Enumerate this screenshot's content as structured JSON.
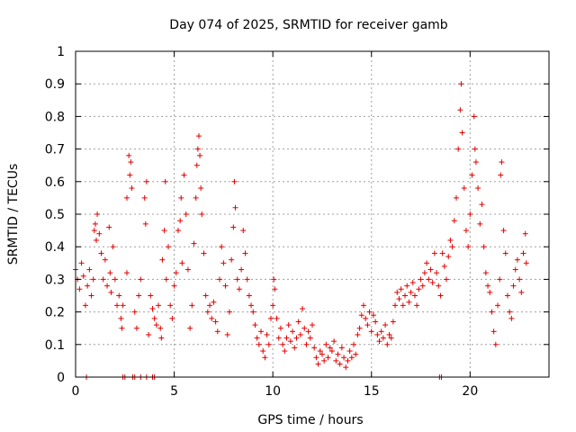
{
  "chart_data": {
    "type": "scatter",
    "title": "Day 074 of 2025, SRMTID for receiver gamb",
    "xlabel": "GPS time / hours",
    "ylabel": "SRMTID / TECUs",
    "xlim": [
      0,
      24
    ],
    "ylim": [
      0,
      1
    ],
    "xticks": [
      0,
      5,
      10,
      15,
      20
    ],
    "xtick_labels": [
      "0",
      "5",
      "10",
      "15",
      "20"
    ],
    "yticks": [
      0,
      0.1,
      0.2,
      0.3,
      0.4,
      0.5,
      0.6,
      0.7,
      0.8,
      0.9,
      1
    ],
    "ytick_labels": [
      "0",
      "0.1",
      "0.2",
      "0.3",
      "0.4",
      "0.5",
      "0.6",
      "0.7",
      "0.8",
      "0.9",
      "1"
    ],
    "grid": true,
    "marker": "plus",
    "color": "#e00000",
    "series": [
      {
        "name": "SRMTID",
        "points": [
          [
            0.0,
            0.33
          ],
          [
            0.1,
            0.3
          ],
          [
            0.2,
            0.27
          ],
          [
            0.3,
            0.35
          ],
          [
            0.4,
            0.31
          ],
          [
            0.5,
            0.22
          ],
          [
            0.6,
            0.28
          ],
          [
            0.7,
            0.33
          ],
          [
            0.8,
            0.25
          ],
          [
            0.9,
            0.3
          ],
          [
            0.95,
            0.45
          ],
          [
            1.0,
            0.47
          ],
          [
            1.05,
            0.42
          ],
          [
            1.1,
            0.5
          ],
          [
            1.2,
            0.44
          ],
          [
            1.3,
            0.38
          ],
          [
            1.4,
            0.3
          ],
          [
            1.5,
            0.36
          ],
          [
            1.6,
            0.28
          ],
          [
            1.7,
            0.46
          ],
          [
            1.75,
            0.32
          ],
          [
            1.8,
            0.26
          ],
          [
            1.9,
            0.4
          ],
          [
            2.0,
            0.3
          ],
          [
            2.1,
            0.22
          ],
          [
            2.2,
            0.25
          ],
          [
            2.3,
            0.18
          ],
          [
            2.35,
            0.15
          ],
          [
            2.4,
            0.22
          ],
          [
            2.6,
            0.32
          ],
          [
            2.6,
            0.55
          ],
          [
            2.7,
            0.68
          ],
          [
            2.75,
            0.62
          ],
          [
            2.8,
            0.66
          ],
          [
            2.85,
            0.58
          ],
          [
            3.0,
            0.2
          ],
          [
            3.1,
            0.15
          ],
          [
            3.2,
            0.25
          ],
          [
            3.3,
            0.3
          ],
          [
            3.5,
            0.55
          ],
          [
            3.6,
            0.6
          ],
          [
            3.55,
            0.47
          ],
          [
            3.7,
            0.13
          ],
          [
            3.8,
            0.25
          ],
          [
            3.9,
            0.21
          ],
          [
            4.0,
            0.18
          ],
          [
            4.1,
            0.16
          ],
          [
            4.2,
            0.22
          ],
          [
            4.3,
            0.15
          ],
          [
            4.35,
            0.12
          ],
          [
            4.4,
            0.36
          ],
          [
            4.5,
            0.45
          ],
          [
            4.55,
            0.6
          ],
          [
            4.6,
            0.3
          ],
          [
            4.7,
            0.4
          ],
          [
            4.8,
            0.22
          ],
          [
            4.9,
            0.18
          ],
          [
            5.0,
            0.28
          ],
          [
            5.1,
            0.32
          ],
          [
            5.2,
            0.45
          ],
          [
            5.3,
            0.48
          ],
          [
            5.35,
            0.55
          ],
          [
            5.4,
            0.35
          ],
          [
            5.5,
            0.62
          ],
          [
            5.6,
            0.5
          ],
          [
            5.7,
            0.33
          ],
          [
            5.8,
            0.15
          ],
          [
            5.9,
            0.22
          ],
          [
            6.0,
            0.41
          ],
          [
            6.1,
            0.55
          ],
          [
            6.15,
            0.65
          ],
          [
            6.2,
            0.7
          ],
          [
            6.25,
            0.74
          ],
          [
            6.3,
            0.68
          ],
          [
            6.35,
            0.58
          ],
          [
            6.4,
            0.5
          ],
          [
            6.5,
            0.38
          ],
          [
            6.6,
            0.25
          ],
          [
            6.7,
            0.2
          ],
          [
            6.8,
            0.22
          ],
          [
            6.9,
            0.18
          ],
          [
            7.0,
            0.23
          ],
          [
            7.1,
            0.17
          ],
          [
            7.2,
            0.14
          ],
          [
            7.3,
            0.3
          ],
          [
            7.4,
            0.4
          ],
          [
            7.5,
            0.35
          ],
          [
            7.6,
            0.28
          ],
          [
            7.7,
            0.13
          ],
          [
            7.8,
            0.2
          ],
          [
            7.9,
            0.36
          ],
          [
            8.0,
            0.46
          ],
          [
            8.05,
            0.6
          ],
          [
            8.1,
            0.52
          ],
          [
            8.2,
            0.3
          ],
          [
            8.3,
            0.27
          ],
          [
            8.4,
            0.33
          ],
          [
            8.5,
            0.45
          ],
          [
            8.6,
            0.38
          ],
          [
            8.7,
            0.3
          ],
          [
            8.8,
            0.25
          ],
          [
            8.9,
            0.22
          ],
          [
            9.0,
            0.2
          ],
          [
            9.1,
            0.16
          ],
          [
            9.2,
            0.12
          ],
          [
            9.3,
            0.1
          ],
          [
            9.4,
            0.14
          ],
          [
            9.5,
            0.08
          ],
          [
            9.6,
            0.06
          ],
          [
            9.7,
            0.13
          ],
          [
            9.8,
            0.1
          ],
          [
            9.9,
            0.18
          ],
          [
            10.0,
            0.22
          ],
          [
            10.05,
            0.3
          ],
          [
            10.1,
            0.27
          ],
          [
            10.2,
            0.18
          ],
          [
            10.3,
            0.12
          ],
          [
            10.4,
            0.15
          ],
          [
            10.5,
            0.1
          ],
          [
            10.6,
            0.08
          ],
          [
            10.7,
            0.12
          ],
          [
            10.8,
            0.16
          ],
          [
            10.9,
            0.11
          ],
          [
            11.0,
            0.14
          ],
          [
            11.1,
            0.09
          ],
          [
            11.2,
            0.12
          ],
          [
            11.3,
            0.17
          ],
          [
            11.4,
            0.13
          ],
          [
            11.5,
            0.21
          ],
          [
            11.6,
            0.15
          ],
          [
            11.7,
            0.1
          ],
          [
            11.8,
            0.14
          ],
          [
            11.9,
            0.12
          ],
          [
            12.0,
            0.16
          ],
          [
            12.1,
            0.09
          ],
          [
            12.2,
            0.06
          ],
          [
            12.3,
            0.04
          ],
          [
            12.4,
            0.08
          ],
          [
            12.5,
            0.07
          ],
          [
            12.6,
            0.05
          ],
          [
            12.7,
            0.1
          ],
          [
            12.8,
            0.06
          ],
          [
            12.9,
            0.09
          ],
          [
            13.0,
            0.08
          ],
          [
            13.1,
            0.11
          ],
          [
            13.2,
            0.05
          ],
          [
            13.3,
            0.07
          ],
          [
            13.4,
            0.04
          ],
          [
            13.5,
            0.09
          ],
          [
            13.6,
            0.06
          ],
          [
            13.7,
            0.03
          ],
          [
            13.8,
            0.05
          ],
          [
            13.9,
            0.08
          ],
          [
            14.0,
            0.06
          ],
          [
            14.1,
            0.1
          ],
          [
            14.2,
            0.07
          ],
          [
            14.3,
            0.13
          ],
          [
            14.4,
            0.15
          ],
          [
            14.5,
            0.19
          ],
          [
            14.6,
            0.22
          ],
          [
            14.7,
            0.18
          ],
          [
            14.8,
            0.16
          ],
          [
            14.9,
            0.2
          ],
          [
            15.0,
            0.14
          ],
          [
            15.1,
            0.19
          ],
          [
            15.2,
            0.17
          ],
          [
            15.3,
            0.13
          ],
          [
            15.4,
            0.11
          ],
          [
            15.5,
            0.14
          ],
          [
            15.6,
            0.12
          ],
          [
            15.7,
            0.16
          ],
          [
            15.8,
            0.1
          ],
          [
            15.9,
            0.13
          ],
          [
            16.0,
            0.12
          ],
          [
            16.1,
            0.17
          ],
          [
            16.2,
            0.22
          ],
          [
            16.3,
            0.26
          ],
          [
            16.4,
            0.24
          ],
          [
            16.5,
            0.27
          ],
          [
            16.6,
            0.22
          ],
          [
            16.7,
            0.25
          ],
          [
            16.8,
            0.28
          ],
          [
            16.9,
            0.23
          ],
          [
            17.0,
            0.26
          ],
          [
            17.1,
            0.29
          ],
          [
            17.2,
            0.25
          ],
          [
            17.3,
            0.22
          ],
          [
            17.4,
            0.27
          ],
          [
            17.5,
            0.3
          ],
          [
            17.6,
            0.28
          ],
          [
            17.7,
            0.32
          ],
          [
            17.8,
            0.35
          ],
          [
            17.9,
            0.3
          ],
          [
            18.0,
            0.33
          ],
          [
            18.1,
            0.29
          ],
          [
            18.2,
            0.38
          ],
          [
            18.3,
            0.32
          ],
          [
            18.4,
            0.28
          ],
          [
            18.5,
            0.25
          ],
          [
            18.6,
            0.38
          ],
          [
            18.7,
            0.34
          ],
          [
            18.8,
            0.3
          ],
          [
            18.9,
            0.37
          ],
          [
            19.0,
            0.42
          ],
          [
            19.1,
            0.4
          ],
          [
            19.2,
            0.48
          ],
          [
            19.3,
            0.55
          ],
          [
            19.4,
            0.7
          ],
          [
            19.5,
            0.82
          ],
          [
            19.55,
            0.9
          ],
          [
            19.6,
            0.75
          ],
          [
            19.7,
            0.58
          ],
          [
            19.8,
            0.45
          ],
          [
            19.9,
            0.4
          ],
          [
            20.0,
            0.5
          ],
          [
            20.1,
            0.62
          ],
          [
            20.2,
            0.8
          ],
          [
            20.25,
            0.7
          ],
          [
            20.3,
            0.66
          ],
          [
            20.4,
            0.58
          ],
          [
            20.5,
            0.47
          ],
          [
            20.6,
            0.53
          ],
          [
            20.7,
            0.4
          ],
          [
            20.8,
            0.32
          ],
          [
            20.9,
            0.28
          ],
          [
            21.0,
            0.26
          ],
          [
            21.1,
            0.2
          ],
          [
            21.2,
            0.14
          ],
          [
            21.3,
            0.1
          ],
          [
            21.4,
            0.22
          ],
          [
            21.5,
            0.3
          ],
          [
            21.55,
            0.62
          ],
          [
            21.6,
            0.66
          ],
          [
            21.7,
            0.45
          ],
          [
            21.8,
            0.38
          ],
          [
            21.9,
            0.25
          ],
          [
            22.0,
            0.2
          ],
          [
            22.1,
            0.18
          ],
          [
            22.2,
            0.28
          ],
          [
            22.3,
            0.33
          ],
          [
            22.4,
            0.36
          ],
          [
            22.5,
            0.3
          ],
          [
            22.6,
            0.26
          ],
          [
            22.7,
            0.38
          ],
          [
            22.8,
            0.44
          ],
          [
            22.85,
            0.35
          ]
        ]
      }
    ],
    "zero_cluster_hours": [
      0.55,
      2.4,
      2.5,
      2.9,
      3.0,
      3.3,
      3.6,
      3.9,
      4.0,
      18.45,
      18.55
    ]
  }
}
